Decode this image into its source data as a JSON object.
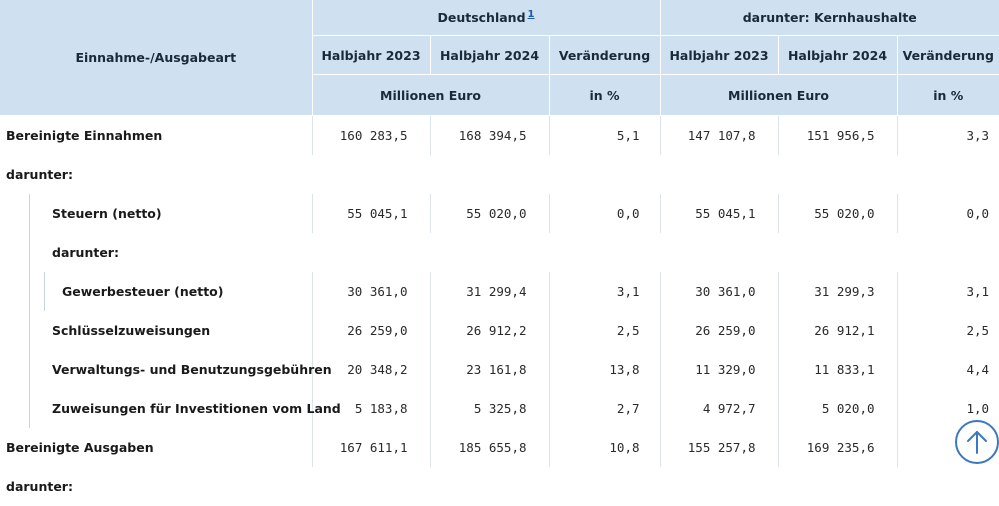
{
  "header": {
    "row_label": "Einnahme-/Ausgabeart",
    "group1_title": "Deutschland",
    "group1_footnote": "1",
    "group2_title": "darunter: Kernhaushalte",
    "cols": [
      "Halbjahr 2023",
      "Halbjahr 2024",
      "Veränderung",
      "Halbjahr 2023",
      "Halbjahr 2024",
      "Veränderung"
    ],
    "unit_mio": "Millionen Euro",
    "unit_pct": "in %"
  },
  "rows": [
    {
      "label": "Bereinigte Einnahmen",
      "values": [
        "160 283,5",
        "168 394,5",
        "5,1",
        "147 107,8",
        "151 956,5",
        "3,3"
      ]
    },
    {
      "label": "darunter:"
    },
    {
      "label": "Steuern (netto)",
      "values": [
        "55 045,1",
        "55 020,0",
        "0,0",
        "55 045,1",
        "55 020,0",
        "0,0"
      ]
    },
    {
      "label": "darunter:"
    },
    {
      "label": "Gewerbesteuer (netto)",
      "values": [
        "30 361,0",
        "31 299,4",
        "3,1",
        "30 361,0",
        "31 299,3",
        "3,1"
      ]
    },
    {
      "label": "Schlüsselzuweisungen",
      "values": [
        "26 259,0",
        "26 912,2",
        "2,5",
        "26 259,0",
        "26 912,1",
        "2,5"
      ]
    },
    {
      "label": "Verwaltungs- und Benutzungsgebühren",
      "values": [
        "20 348,2",
        "23 161,8",
        "13,8",
        "11 329,0",
        "11 833,1",
        "4,4"
      ]
    },
    {
      "label": "Zuweisungen für Investitionen vom Land",
      "values": [
        "5 183,8",
        "5 325,8",
        "2,7",
        "4 972,7",
        "5 020,0",
        "1,0"
      ]
    },
    {
      "label": "Bereinigte Ausgaben",
      "values": [
        "167 611,1",
        "185 655,8",
        "10,8",
        "155 257,8",
        "169 235,6",
        ""
      ]
    },
    {
      "label": "darunter:"
    }
  ],
  "scroll_to_top": {
    "icon": "arrow-up-icon",
    "color": "#3b78c2"
  }
}
